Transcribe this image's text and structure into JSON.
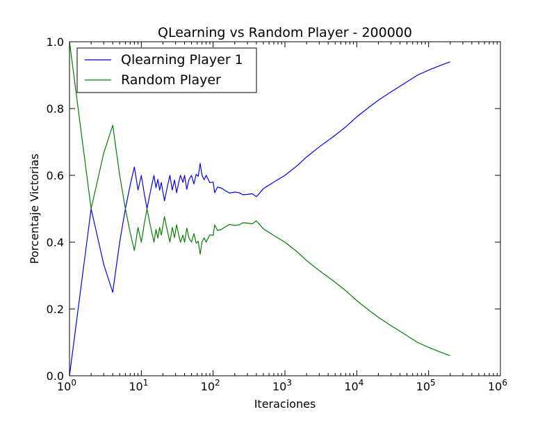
{
  "chart_data": {
    "type": "line",
    "title": "QLearning vs Random Player - 200000",
    "xlabel": "Iteraciones",
    "ylabel": "Porcentaje Victorias",
    "x_scale": "log",
    "xlim": [
      1,
      1000000
    ],
    "ylim": [
      0.0,
      1.0
    ],
    "grid": false,
    "legend_position": "upper left",
    "x_ticks": [
      {
        "value": 1,
        "base": "10",
        "exp": "0"
      },
      {
        "value": 10,
        "base": "10",
        "exp": "1"
      },
      {
        "value": 100,
        "base": "10",
        "exp": "2"
      },
      {
        "value": 1000,
        "base": "10",
        "exp": "3"
      },
      {
        "value": 10000,
        "base": "10",
        "exp": "4"
      },
      {
        "value": 100000,
        "base": "10",
        "exp": "5"
      },
      {
        "value": 1000000,
        "base": "10",
        "exp": "6"
      }
    ],
    "y_ticks": [
      {
        "value": 0.0,
        "label": "0.0"
      },
      {
        "value": 0.2,
        "label": "0.2"
      },
      {
        "value": 0.4,
        "label": "0.4"
      },
      {
        "value": 0.6,
        "label": "0.6"
      },
      {
        "value": 0.8,
        "label": "0.8"
      },
      {
        "value": 1.0,
        "label": "1.0"
      }
    ],
    "series": [
      {
        "name": "Qlearning Player 1",
        "color": "#0000ff",
        "x": [
          1,
          2,
          3,
          4,
          5,
          6,
          7,
          8,
          9,
          10,
          11,
          12,
          13,
          14,
          15,
          16,
          17,
          18,
          19,
          20,
          21,
          22,
          23,
          25,
          27,
          29,
          31,
          33,
          35,
          38,
          40,
          43,
          46,
          50,
          54,
          58,
          62,
          66,
          70,
          75,
          80,
          90,
          100,
          105,
          115,
          130,
          150,
          170,
          200,
          230,
          260,
          300,
          350,
          400,
          500,
          700,
          1000,
          1500,
          2000,
          3000,
          5000,
          7000,
          10000,
          15000,
          20000,
          30000,
          50000,
          70000,
          100000,
          150000,
          200000
        ],
        "y": [
          0.0,
          0.5,
          0.333,
          0.25,
          0.4,
          0.5,
          0.571,
          0.625,
          0.556,
          0.6,
          0.545,
          0.5,
          0.538,
          0.571,
          0.6,
          0.563,
          0.588,
          0.556,
          0.579,
          0.55,
          0.524,
          0.545,
          0.565,
          0.6,
          0.556,
          0.586,
          0.548,
          0.576,
          0.6,
          0.579,
          0.6,
          0.558,
          0.587,
          0.6,
          0.574,
          0.603,
          0.597,
          0.636,
          0.6,
          0.587,
          0.6,
          0.578,
          0.58,
          0.548,
          0.565,
          0.562,
          0.553,
          0.547,
          0.55,
          0.548,
          0.542,
          0.543,
          0.545,
          0.536,
          0.56,
          0.58,
          0.6,
          0.63,
          0.655,
          0.685,
          0.72,
          0.745,
          0.775,
          0.805,
          0.825,
          0.85,
          0.88,
          0.9,
          0.915,
          0.93,
          0.94
        ]
      },
      {
        "name": "Random Player",
        "color": "#008000",
        "x": [
          1,
          2,
          3,
          4,
          5,
          6,
          7,
          8,
          9,
          10,
          11,
          12,
          13,
          14,
          15,
          16,
          17,
          18,
          19,
          20,
          21,
          22,
          23,
          25,
          27,
          29,
          31,
          33,
          35,
          38,
          40,
          43,
          46,
          50,
          54,
          58,
          62,
          66,
          70,
          75,
          80,
          90,
          100,
          105,
          115,
          130,
          150,
          170,
          200,
          230,
          260,
          300,
          350,
          400,
          500,
          700,
          1000,
          1500,
          2000,
          3000,
          5000,
          7000,
          10000,
          15000,
          20000,
          30000,
          50000,
          70000,
          100000,
          150000,
          200000
        ],
        "y": [
          1.0,
          0.5,
          0.667,
          0.75,
          0.6,
          0.5,
          0.429,
          0.375,
          0.444,
          0.4,
          0.455,
          0.5,
          0.462,
          0.429,
          0.4,
          0.438,
          0.412,
          0.444,
          0.421,
          0.45,
          0.476,
          0.455,
          0.435,
          0.4,
          0.444,
          0.414,
          0.452,
          0.424,
          0.4,
          0.421,
          0.4,
          0.442,
          0.413,
          0.4,
          0.426,
          0.397,
          0.403,
          0.364,
          0.4,
          0.413,
          0.4,
          0.422,
          0.42,
          0.452,
          0.435,
          0.438,
          0.447,
          0.453,
          0.45,
          0.452,
          0.458,
          0.457,
          0.455,
          0.464,
          0.44,
          0.42,
          0.4,
          0.37,
          0.345,
          0.315,
          0.28,
          0.255,
          0.225,
          0.195,
          0.175,
          0.15,
          0.12,
          0.1,
          0.085,
          0.07,
          0.06
        ]
      }
    ]
  }
}
